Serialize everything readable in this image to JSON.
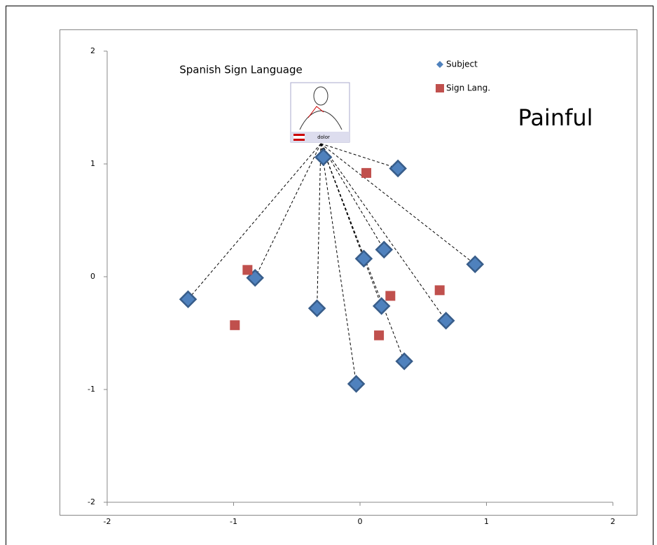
{
  "chart_data": {
    "type": "scatter",
    "title": "Spanish Sign Language",
    "annotation": "Painful",
    "image_caption": "dolor",
    "series": [
      {
        "name": "Subject",
        "color": "#4f81bd",
        "marker": "diamond",
        "x": [
          -1.36,
          -0.83,
          -0.34,
          -0.29,
          -0.03,
          0.03,
          0.17,
          0.19,
          0.3,
          0.35,
          0.68,
          0.91
        ],
        "values": [
          -0.2,
          -0.01,
          -0.28,
          1.06,
          -0.95,
          0.16,
          -0.26,
          0.24,
          0.96,
          -0.75,
          -0.39,
          0.11
        ]
      },
      {
        "name": "Sign Lang.",
        "color": "#c0504d",
        "marker": "square",
        "x": [
          -0.89,
          -0.99,
          0.05,
          0.24,
          0.15,
          0.63
        ],
        "values": [
          0.06,
          -0.43,
          0.92,
          -0.17,
          -0.52,
          -0.12
        ]
      }
    ],
    "xlim": [
      -2,
      2
    ],
    "xticks": [
      -2,
      -1,
      0,
      1,
      2
    ],
    "ylim": [
      -2,
      2
    ],
    "yticks": [
      -2,
      -1,
      0,
      1,
      2
    ]
  }
}
